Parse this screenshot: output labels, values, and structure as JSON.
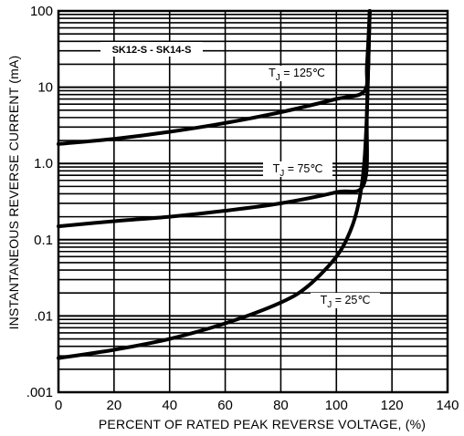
{
  "chart_data": {
    "type": "line",
    "model_label": "SK12-S - SK14-S",
    "xlabel": "PERCENT OF RATED PEAK REVERSE VOLTAGE, (%)",
    "ylabel": "INSTANTANEOUS REVERSE CURRENT (mA)",
    "xlim": [
      0,
      140
    ],
    "ylim": [
      0.001,
      100
    ],
    "yscale": "log",
    "grid": true,
    "x_tick_labels": [
      "0",
      "20",
      "40",
      "60",
      "80",
      "100",
      "120",
      "140"
    ],
    "y_tick_labels": [
      ".001",
      ".01",
      "0.1",
      "1.0",
      "10",
      "100"
    ],
    "series": [
      {
        "label_main": "T",
        "label_sub": "J",
        "label_rest": " = 125℃",
        "x": [
          0,
          20,
          40,
          60,
          80,
          100,
          110,
          111,
          112
        ],
        "y": [
          1.8,
          2.1,
          2.6,
          3.4,
          4.7,
          7.0,
          8.8,
          20,
          100
        ]
      },
      {
        "label_main": "T",
        "label_sub": "J",
        "label_rest": " = 75℃",
        "x": [
          0,
          20,
          40,
          60,
          80,
          100,
          110,
          111,
          112
        ],
        "y": [
          0.15,
          0.175,
          0.2,
          0.24,
          0.3,
          0.42,
          0.55,
          5,
          100
        ]
      },
      {
        "label_main": "T",
        "label_sub": "J",
        "label_rest": " = 25℃",
        "x": [
          0,
          20,
          40,
          60,
          80,
          90,
          100,
          105,
          108,
          110,
          111,
          112
        ],
        "y": [
          0.0028,
          0.0036,
          0.005,
          0.008,
          0.015,
          0.025,
          0.06,
          0.13,
          0.3,
          1.0,
          5,
          100
        ]
      }
    ]
  }
}
